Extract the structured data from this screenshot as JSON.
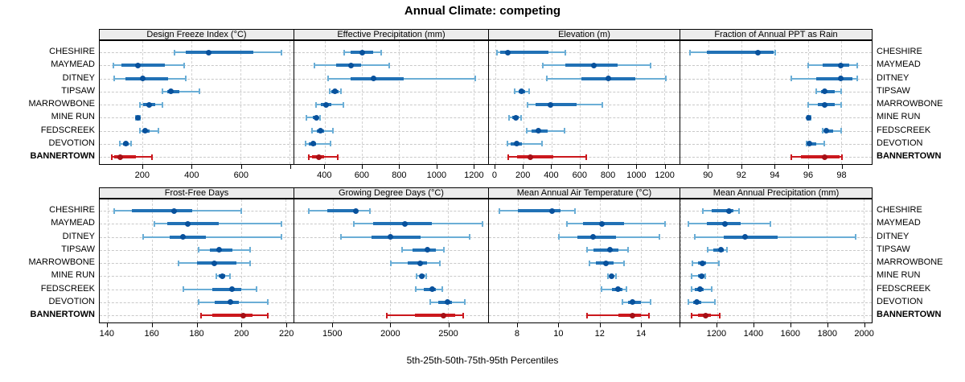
{
  "title": "Annual Climate: competing",
  "caption": "5th-25th-50th-75th-95th Percentiles",
  "sites": [
    "CHESHIRE",
    "MAYMEAD",
    "DITNEY",
    "TIPSAW",
    "MARROWBONE",
    "MINE RUN",
    "FEDSCREEK",
    "DEVOTION",
    "BANNERTOWN"
  ],
  "highlight_site": "BANNERTOWN",
  "colors": {
    "blue_dot": "#08519c",
    "blue_band": "#2171b5",
    "blue_whisker": "#6baed6",
    "red_dot": "#a50f15",
    "red_band": "#cb181d",
    "red_whisker": "#cb181d",
    "grid": "#c9c9c9",
    "strip_bg": "#ececec",
    "border": "#000000"
  },
  "chart_data": [
    {
      "type": "dotplot-interval",
      "title": "Design Freeze Index (°C)",
      "percentile_labels": [
        "5th",
        "25th",
        "50th",
        "75th",
        "95th"
      ],
      "xlim": [
        25,
        815
      ],
      "ticks": [
        200,
        400,
        600
      ],
      "unlabeled_ticks": [
        800
      ],
      "series": [
        {
          "name": "CHESHIRE",
          "values": [
            330,
            375,
            470,
            650,
            765
          ]
        },
        {
          "name": "MAYMEAD",
          "values": [
            80,
            115,
            180,
            290,
            370
          ]
        },
        {
          "name": "DITNEY",
          "values": [
            85,
            130,
            200,
            305,
            375
          ]
        },
        {
          "name": "TIPSAW",
          "values": [
            280,
            300,
            315,
            350,
            430
          ]
        },
        {
          "name": "MARROWBONE",
          "values": [
            190,
            203,
            227,
            252,
            280
          ]
        },
        {
          "name": "MINE RUN",
          "values": [
            173,
            177,
            181,
            185,
            189
          ]
        },
        {
          "name": "FEDSCREEK",
          "values": [
            189,
            198,
            209,
            227,
            265
          ]
        },
        {
          "name": "DEVOTION",
          "values": [
            108,
            119,
            130,
            143,
            154
          ]
        },
        {
          "name": "BANNERTOWN",
          "values": [
            75,
            85,
            108,
            173,
            238
          ]
        }
      ]
    },
    {
      "type": "dotplot-interval",
      "title": "Effective Precipitation (mm)",
      "percentile_labels": [
        "5th",
        "25th",
        "50th",
        "75th",
        "95th"
      ],
      "xlim": [
        235,
        1280
      ],
      "ticks": [
        400,
        600,
        800,
        1000,
        1200
      ],
      "unlabeled_ticks": [],
      "series": [
        {
          "name": "CHESHIRE",
          "values": [
            505,
            540,
            600,
            660,
            705
          ]
        },
        {
          "name": "MAYMEAD",
          "values": [
            345,
            460,
            540,
            595,
            745
          ]
        },
        {
          "name": "DITNEY",
          "values": [
            415,
            540,
            660,
            825,
            1210
          ]
        },
        {
          "name": "TIPSAW",
          "values": [
            425,
            435,
            455,
            475,
            485
          ]
        },
        {
          "name": "MARROWBONE",
          "values": [
            350,
            380,
            407,
            435,
            500
          ]
        },
        {
          "name": "MINE RUN",
          "values": [
            300,
            335,
            355,
            365,
            375
          ]
        },
        {
          "name": "FEDSCREEK",
          "values": [
            330,
            355,
            378,
            397,
            443
          ]
        },
        {
          "name": "DEVOTION",
          "values": [
            295,
            313,
            335,
            350,
            430
          ]
        },
        {
          "name": "BANNERTOWN",
          "values": [
            315,
            330,
            368,
            397,
            470
          ]
        }
      ]
    },
    {
      "type": "dotplot-interval",
      "title": "Elevation (m)",
      "percentile_labels": [
        "5th",
        "25th",
        "50th",
        "75th",
        "95th"
      ],
      "xlim": [
        -45,
        1310
      ],
      "ticks": [
        0,
        200,
        400,
        600,
        800,
        1000,
        1200
      ],
      "unlabeled_ticks": [],
      "series": [
        {
          "name": "CHESHIRE",
          "values": [
            15,
            35,
            90,
            380,
            500
          ]
        },
        {
          "name": "MAYMEAD",
          "values": [
            340,
            500,
            700,
            870,
            1105
          ]
        },
        {
          "name": "DITNEY",
          "values": [
            365,
            615,
            805,
            995,
            1215
          ]
        },
        {
          "name": "TIPSAW",
          "values": [
            140,
            165,
            185,
            210,
            240
          ]
        },
        {
          "name": "MARROWBONE",
          "values": [
            230,
            285,
            395,
            580,
            760
          ]
        },
        {
          "name": "MINE RUN",
          "values": [
            100,
            118,
            148,
            167,
            185
          ]
        },
        {
          "name": "FEDSCREEK",
          "values": [
            225,
            260,
            307,
            370,
            490
          ]
        },
        {
          "name": "DEVOTION",
          "values": [
            85,
            110,
            155,
            190,
            330
          ]
        },
        {
          "name": "BANNERTOWN",
          "values": [
            90,
            155,
            250,
            410,
            645
          ]
        }
      ]
    },
    {
      "type": "dotplot-interval",
      "title": "Fraction of Annual PPT as Rain",
      "percentile_labels": [
        "5th",
        "25th",
        "50th",
        "75th",
        "95th"
      ],
      "xlim": [
        88.3,
        99.85
      ],
      "ticks": [
        90,
        92,
        94,
        96,
        98
      ],
      "unlabeled_ticks": [],
      "series": [
        {
          "name": "CHESHIRE",
          "values": [
            88.9,
            89.9,
            93.0,
            93.95,
            94.05
          ]
        },
        {
          "name": "MAYMEAD",
          "values": [
            96.0,
            96.9,
            98.0,
            98.5,
            99.0
          ]
        },
        {
          "name": "DITNEY",
          "values": [
            95.0,
            96.5,
            98.0,
            98.7,
            99.0
          ]
        },
        {
          "name": "TIPSAW",
          "values": [
            96.5,
            96.8,
            97.0,
            97.6,
            98.0
          ]
        },
        {
          "name": "MARROWBONE",
          "values": [
            96.0,
            96.6,
            97.0,
            97.6,
            98.0
          ]
        },
        {
          "name": "MINE RUN",
          "values": [
            95.95,
            96.0,
            96.05,
            96.1,
            96.15
          ]
        },
        {
          "name": "FEDSCREEK",
          "values": [
            96.9,
            97.0,
            97.1,
            97.5,
            98.0
          ]
        },
        {
          "name": "DEVOTION",
          "values": [
            95.9,
            96.0,
            96.1,
            96.5,
            97.0
          ]
        },
        {
          "name": "BANNERTOWN",
          "values": [
            95.0,
            95.6,
            97.0,
            97.9,
            98.05
          ]
        }
      ]
    },
    {
      "type": "dotplot-interval",
      "title": "Frost-Free Days",
      "percentile_labels": [
        "5th",
        "25th",
        "50th",
        "75th",
        "95th"
      ],
      "xlim": [
        136.5,
        223.5
      ],
      "ticks": [
        140,
        160,
        180,
        200,
        220
      ],
      "unlabeled_ticks": [],
      "series": [
        {
          "name": "CHESHIRE",
          "values": [
            143,
            151,
            170,
            178,
            200
          ]
        },
        {
          "name": "MAYMEAD",
          "values": [
            161,
            167,
            176,
            190,
            218
          ]
        },
        {
          "name": "DITNEY",
          "values": [
            156,
            168,
            174,
            184,
            218
          ]
        },
        {
          "name": "TIPSAW",
          "values": [
            181,
            186,
            190,
            196,
            204
          ]
        },
        {
          "name": "MARROWBONE",
          "values": [
            172,
            180,
            188,
            198,
            204
          ]
        },
        {
          "name": "MINE RUN",
          "values": [
            189,
            190,
            191.5,
            193,
            195
          ]
        },
        {
          "name": "FEDSCREEK",
          "values": [
            174,
            187,
            196,
            200,
            207
          ]
        },
        {
          "name": "DEVOTION",
          "values": [
            181,
            188,
            195,
            199,
            212
          ]
        },
        {
          "name": "BANNERTOWN",
          "values": [
            182,
            187,
            201,
            205,
            212
          ]
        }
      ]
    },
    {
      "type": "dotplot-interval",
      "title": "Growing Degree Days (°C)",
      "percentile_labels": [
        "5th",
        "25th",
        "50th",
        "75th",
        "95th"
      ],
      "xlim": [
        1165,
        2850
      ],
      "ticks": [
        1500,
        2000,
        2500
      ],
      "unlabeled_ticks": [],
      "series": [
        {
          "name": "CHESHIRE",
          "values": [
            1290,
            1450,
            1700,
            1715,
            1820
          ]
        },
        {
          "name": "MAYMEAD",
          "values": [
            1680,
            1850,
            2125,
            2360,
            2800
          ]
        },
        {
          "name": "DITNEY",
          "values": [
            1570,
            1835,
            2000,
            2260,
            2690
          ]
        },
        {
          "name": "TIPSAW",
          "values": [
            2105,
            2190,
            2325,
            2395,
            2465
          ]
        },
        {
          "name": "MARROWBONE",
          "values": [
            2005,
            2150,
            2260,
            2320,
            2430
          ]
        },
        {
          "name": "MINE RUN",
          "values": [
            2225,
            2255,
            2275,
            2300,
            2315
          ]
        },
        {
          "name": "FEDSCREEK",
          "values": [
            2220,
            2290,
            2365,
            2395,
            2450
          ]
        },
        {
          "name": "DEVOTION",
          "values": [
            2350,
            2415,
            2500,
            2535,
            2645
          ]
        },
        {
          "name": "BANNERTOWN",
          "values": [
            1970,
            2215,
            2465,
            2560,
            2635
          ]
        }
      ]
    },
    {
      "type": "dotplot-interval",
      "title": "Mean Annual Air Temperature (°C)",
      "percentile_labels": [
        "5th",
        "25th",
        "50th",
        "75th",
        "95th"
      ],
      "xlim": [
        6.6,
        15.9
      ],
      "ticks": [
        8,
        10,
        12,
        14
      ],
      "unlabeled_ticks": [],
      "series": [
        {
          "name": "CHESHIRE",
          "values": [
            7.1,
            8.0,
            9.7,
            10.1,
            10.8
          ]
        },
        {
          "name": "MAYMEAD",
          "values": [
            10.4,
            11.2,
            12.1,
            13.2,
            15.2
          ]
        },
        {
          "name": "DITNEY",
          "values": [
            10.0,
            10.9,
            11.7,
            12.8,
            14.9
          ]
        },
        {
          "name": "TIPSAW",
          "values": [
            11.4,
            11.7,
            12.5,
            12.9,
            13.4
          ]
        },
        {
          "name": "MARROWBONE",
          "values": [
            11.5,
            11.8,
            12.3,
            12.7,
            13.2
          ]
        },
        {
          "name": "MINE RUN",
          "values": [
            12.4,
            12.5,
            12.6,
            12.7,
            12.8
          ]
        },
        {
          "name": "FEDSCREEK",
          "values": [
            12.1,
            12.6,
            12.9,
            13.1,
            13.3
          ]
        },
        {
          "name": "DEVOTION",
          "values": [
            13.1,
            13.4,
            13.6,
            14.0,
            14.5
          ]
        },
        {
          "name": "BANNERTOWN",
          "values": [
            11.4,
            12.9,
            13.6,
            14.0,
            14.4
          ]
        }
      ]
    },
    {
      "type": "dotplot-interval",
      "title": "Mean Annual Precipitation (mm)",
      "percentile_labels": [
        "5th",
        "25th",
        "50th",
        "75th",
        "95th"
      ],
      "xlim": [
        1000,
        2045
      ],
      "ticks": [
        1200,
        1400,
        1600,
        1800,
        2000
      ],
      "unlabeled_ticks": [
        1000
      ],
      "series": [
        {
          "name": "CHESHIRE",
          "values": [
            1125,
            1170,
            1265,
            1290,
            1320
          ]
        },
        {
          "name": "MAYMEAD",
          "values": [
            1045,
            1145,
            1245,
            1330,
            1490
          ]
        },
        {
          "name": "DITNEY",
          "values": [
            1080,
            1235,
            1355,
            1530,
            1955
          ]
        },
        {
          "name": "TIPSAW",
          "values": [
            1150,
            1180,
            1220,
            1235,
            1255
          ]
        },
        {
          "name": "MARROWBONE",
          "values": [
            1065,
            1095,
            1122,
            1140,
            1210
          ]
        },
        {
          "name": "MINE RUN",
          "values": [
            1060,
            1098,
            1117,
            1130,
            1137
          ]
        },
        {
          "name": "FEDSCREEK",
          "values": [
            1060,
            1080,
            1108,
            1127,
            1170
          ]
        },
        {
          "name": "DEVOTION",
          "values": [
            1045,
            1070,
            1090,
            1112,
            1190
          ]
        },
        {
          "name": "BANNERTOWN",
          "values": [
            1060,
            1098,
            1137,
            1165,
            1215
          ]
        }
      ]
    }
  ]
}
